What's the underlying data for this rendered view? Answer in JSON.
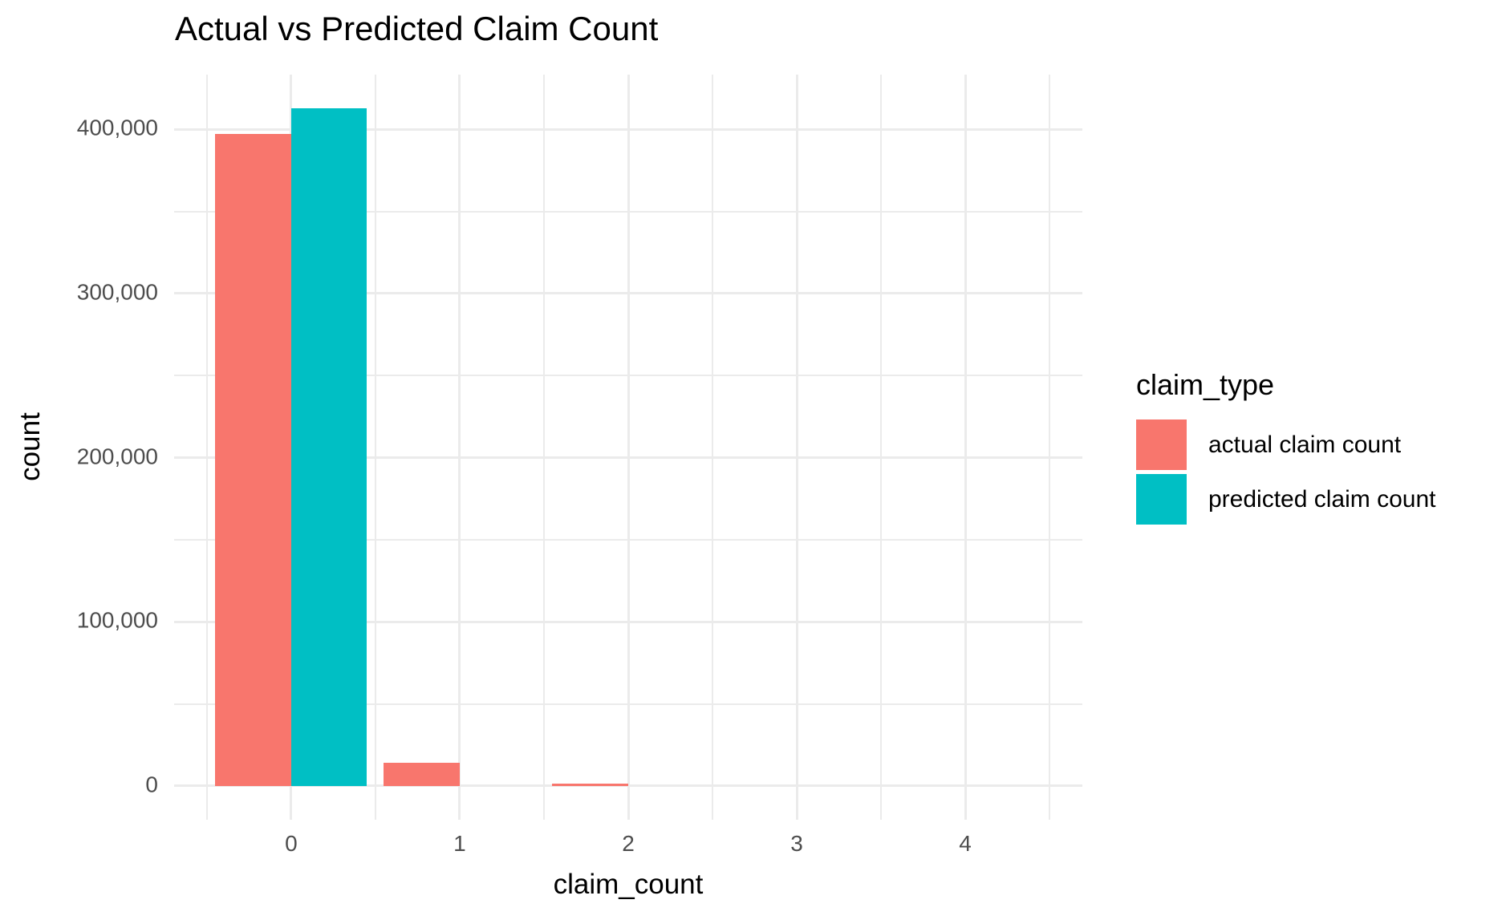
{
  "chart_data": {
    "type": "bar",
    "title": "Actual vs Predicted Claim Count",
    "xlabel": "claim_count",
    "ylabel": "count",
    "categories": [
      0,
      1,
      2,
      3,
      4
    ],
    "series": [
      {
        "name": "actual claim count",
        "color": "#F8766D",
        "values": [
          397000,
          14300,
          1200,
          0,
          0
        ]
      },
      {
        "name": "predicted claim count",
        "color": "#00BFC4",
        "values": [
          413000,
          0,
          0,
          0,
          0
        ]
      }
    ],
    "bar_layout": {
      "bar_width": 0.45,
      "dodge": "side-by-side"
    },
    "x_axis": {
      "ticks": [
        0,
        1,
        2,
        3,
        4
      ],
      "tick_labels": [
        "0",
        "1",
        "2",
        "3",
        "4"
      ],
      "minor_ticks": [
        -0.5,
        0.5,
        1.5,
        2.5,
        3.5,
        4.5
      ],
      "range": [
        -0.695,
        4.695
      ]
    },
    "y_axis": {
      "ticks": [
        0,
        100000,
        200000,
        300000,
        400000
      ],
      "tick_labels": [
        "0",
        "100,000",
        "200,000",
        "300,000",
        "400,000"
      ],
      "minor_ticks": [
        50000,
        150000,
        250000,
        350000
      ],
      "range": [
        -20600,
        433400
      ]
    },
    "legend": {
      "title": "claim_type",
      "position": "right",
      "entries": [
        "actual claim count",
        "predicted claim count"
      ]
    },
    "grid": true,
    "style": "ggplot-minimal"
  },
  "colors": {
    "background": "#FFFFFF",
    "gridline": "#EBEBEB",
    "tick_label": "#4D4D4D",
    "text": "#000000",
    "actual": "#F8766D",
    "predicted": "#00BFC4"
  }
}
